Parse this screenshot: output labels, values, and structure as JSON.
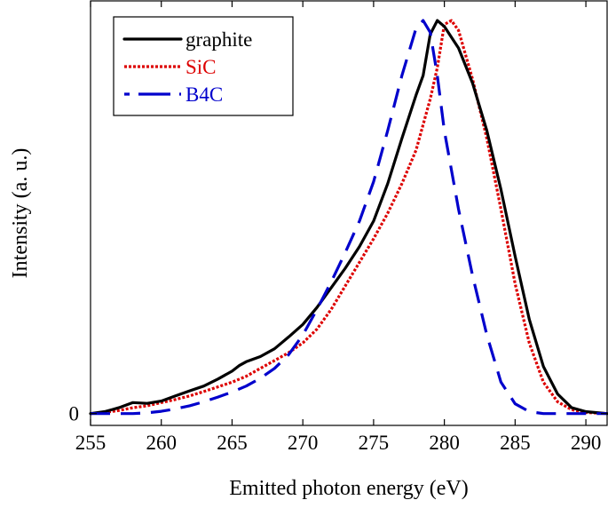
{
  "chart_data": {
    "type": "line",
    "title": "",
    "xlabel": "Emitted photon energy (eV)",
    "ylabel": "Intensity (a. u.)",
    "xlim": [
      255,
      291.5
    ],
    "ylim": [
      -0.03,
      1.05
    ],
    "x_ticks": [
      255,
      260,
      265,
      270,
      275,
      280,
      285,
      290
    ],
    "y_ticks": [
      0
    ],
    "grid": false,
    "legend_position": "top-left",
    "series": [
      {
        "name": "graphite",
        "color": "#000000",
        "style": "solid",
        "points": [
          [
            255,
            0.0
          ],
          [
            256,
            0.005
          ],
          [
            257,
            0.015
          ],
          [
            258,
            0.028
          ],
          [
            259,
            0.026
          ],
          [
            260,
            0.032
          ],
          [
            261,
            0.045
          ],
          [
            262,
            0.058
          ],
          [
            263,
            0.07
          ],
          [
            264,
            0.088
          ],
          [
            265,
            0.108
          ],
          [
            265.5,
            0.122
          ],
          [
            266,
            0.132
          ],
          [
            267,
            0.145
          ],
          [
            268,
            0.165
          ],
          [
            269,
            0.195
          ],
          [
            270,
            0.227
          ],
          [
            271,
            0.27
          ],
          [
            272,
            0.32
          ],
          [
            273,
            0.37
          ],
          [
            274,
            0.425
          ],
          [
            275,
            0.49
          ],
          [
            276,
            0.585
          ],
          [
            277,
            0.7
          ],
          [
            278,
            0.81
          ],
          [
            278.5,
            0.86
          ],
          [
            279,
            0.965
          ],
          [
            279.5,
            1.0
          ],
          [
            280,
            0.985
          ],
          [
            281,
            0.93
          ],
          [
            282,
            0.84
          ],
          [
            283,
            0.72
          ],
          [
            284,
            0.57
          ],
          [
            285,
            0.4
          ],
          [
            286,
            0.24
          ],
          [
            287,
            0.12
          ],
          [
            288,
            0.05
          ],
          [
            289,
            0.015
          ],
          [
            290,
            0.005
          ],
          [
            291.5,
            0.0
          ]
        ]
      },
      {
        "name": "SiC",
        "color": "#dd0000",
        "style": "dotted",
        "points": [
          [
            255,
            0.0
          ],
          [
            256,
            0.003
          ],
          [
            257,
            0.008
          ],
          [
            258,
            0.015
          ],
          [
            259,
            0.02
          ],
          [
            260,
            0.028
          ],
          [
            261,
            0.036
          ],
          [
            262,
            0.045
          ],
          [
            263,
            0.056
          ],
          [
            264,
            0.068
          ],
          [
            265,
            0.08
          ],
          [
            266,
            0.095
          ],
          [
            267,
            0.115
          ],
          [
            268,
            0.135
          ],
          [
            269,
            0.155
          ],
          [
            270,
            0.18
          ],
          [
            271,
            0.215
          ],
          [
            272,
            0.265
          ],
          [
            273,
            0.325
          ],
          [
            274,
            0.385
          ],
          [
            275,
            0.445
          ],
          [
            276,
            0.51
          ],
          [
            277,
            0.585
          ],
          [
            278,
            0.67
          ],
          [
            279,
            0.8
          ],
          [
            279.5,
            0.88
          ],
          [
            280,
            0.99
          ],
          [
            280.5,
            1.0
          ],
          [
            281,
            0.975
          ],
          [
            282,
            0.85
          ],
          [
            283,
            0.7
          ],
          [
            284,
            0.52
          ],
          [
            285,
            0.33
          ],
          [
            286,
            0.18
          ],
          [
            287,
            0.08
          ],
          [
            288,
            0.03
          ],
          [
            289,
            0.01
          ],
          [
            290,
            0.003
          ],
          [
            291.5,
            0.0
          ]
        ]
      },
      {
        "name": "B4C",
        "color": "#0000cc",
        "style": "dashed",
        "points": [
          [
            255,
            0.0
          ],
          [
            256,
            0.0
          ],
          [
            257,
            0.0
          ],
          [
            258,
            0.0
          ],
          [
            259,
            0.002
          ],
          [
            260,
            0.006
          ],
          [
            261,
            0.012
          ],
          [
            262,
            0.02
          ],
          [
            263,
            0.03
          ],
          [
            264,
            0.042
          ],
          [
            265,
            0.055
          ],
          [
            266,
            0.07
          ],
          [
            267,
            0.09
          ],
          [
            268,
            0.115
          ],
          [
            269,
            0.15
          ],
          [
            270,
            0.2
          ],
          [
            271,
            0.265
          ],
          [
            272,
            0.335
          ],
          [
            273,
            0.41
          ],
          [
            274,
            0.49
          ],
          [
            275,
            0.59
          ],
          [
            276,
            0.72
          ],
          [
            277,
            0.86
          ],
          [
            278,
            0.98
          ],
          [
            278.5,
            1.0
          ],
          [
            279,
            0.97
          ],
          [
            279.5,
            0.86
          ],
          [
            280,
            0.72
          ],
          [
            281,
            0.52
          ],
          [
            282,
            0.35
          ],
          [
            283,
            0.2
          ],
          [
            284,
            0.08
          ],
          [
            285,
            0.025
          ],
          [
            286,
            0.005
          ],
          [
            287,
            0.0
          ],
          [
            288,
            0.0
          ],
          [
            289,
            0.0
          ],
          [
            290,
            0.0
          ],
          [
            291.5,
            0.0
          ]
        ]
      }
    ]
  }
}
